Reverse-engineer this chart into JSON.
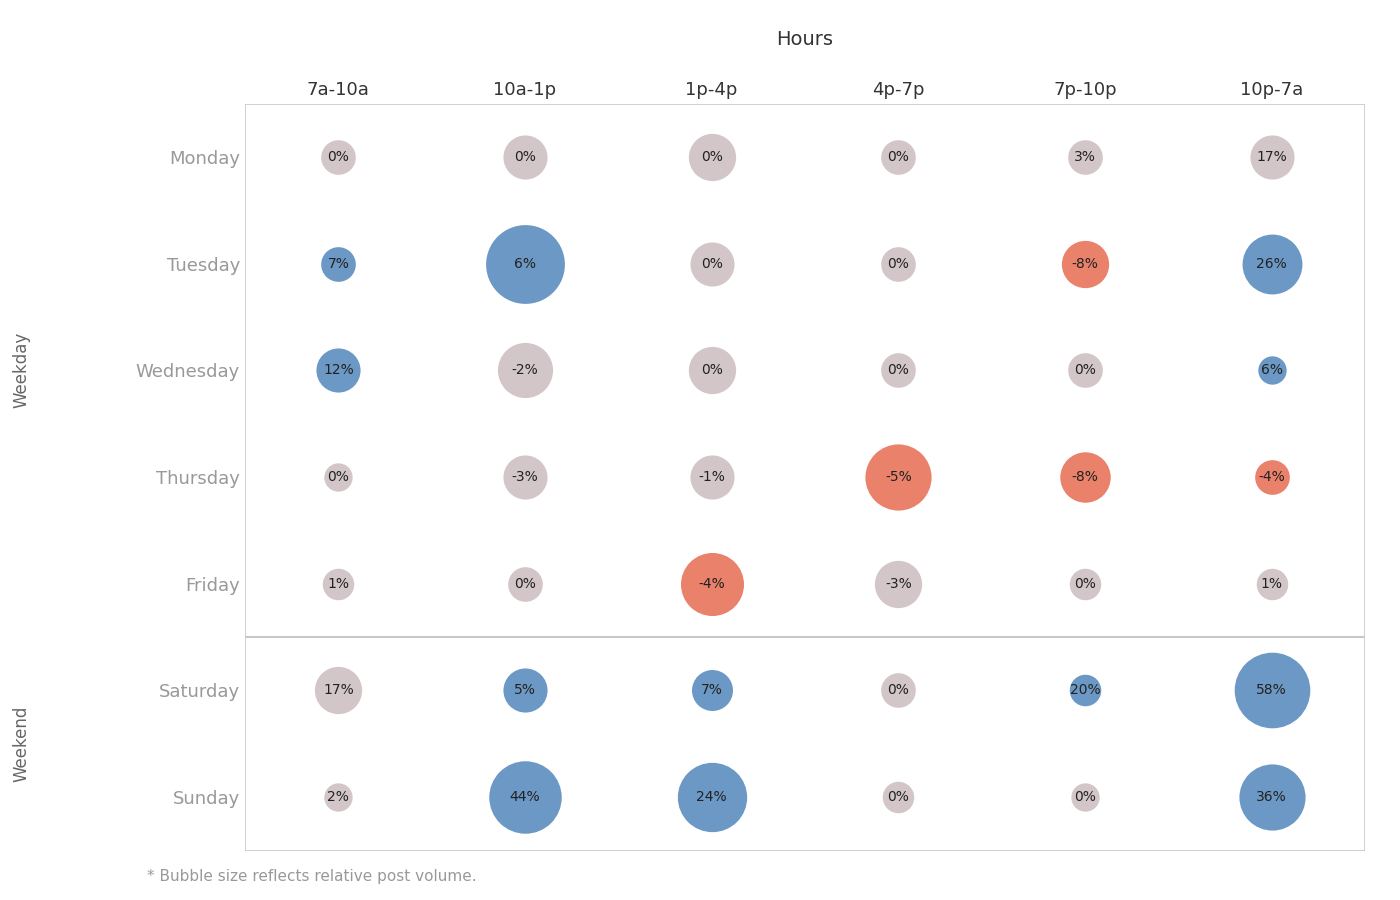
{
  "title": "Hours",
  "x_labels": [
    "7a-10a",
    "10a-1p",
    "1p-4p",
    "4p-7p",
    "7p-10p",
    "10p-7a"
  ],
  "y_labels": [
    "Monday",
    "Tuesday",
    "Wednesday",
    "Thursday",
    "Friday",
    "Saturday",
    "Sunday"
  ],
  "weekday_label": "Weekday",
  "weekend_label": "Weekend",
  "footnote": "* Bubble size reflects relative post volume.",
  "values": [
    [
      0,
      0,
      0,
      0,
      3,
      17
    ],
    [
      7,
      6,
      0,
      0,
      -8,
      26
    ],
    [
      12,
      -2,
      0,
      0,
      0,
      6
    ],
    [
      0,
      -3,
      -1,
      -5,
      -8,
      -4
    ],
    [
      1,
      0,
      -4,
      -3,
      0,
      1
    ],
    [
      17,
      5,
      7,
      0,
      20,
      58
    ],
    [
      2,
      44,
      24,
      0,
      0,
      36
    ]
  ],
  "colors": [
    [
      "neutral",
      "neutral",
      "neutral",
      "neutral",
      "neutral",
      "neutral"
    ],
    [
      "positive",
      "positive",
      "neutral",
      "neutral",
      "negative",
      "positive"
    ],
    [
      "positive",
      "neutral",
      "neutral",
      "neutral",
      "neutral",
      "positive"
    ],
    [
      "neutral",
      "neutral",
      "neutral",
      "negative",
      "negative",
      "negative"
    ],
    [
      "neutral",
      "neutral",
      "negative",
      "neutral",
      "neutral",
      "neutral"
    ],
    [
      "neutral",
      "positive",
      "positive",
      "neutral",
      "positive",
      "positive"
    ],
    [
      "neutral",
      "positive",
      "positive",
      "neutral",
      "neutral",
      "positive"
    ]
  ],
  "bubble_radii": [
    [
      22,
      28,
      30,
      22,
      22,
      28
    ],
    [
      22,
      50,
      28,
      22,
      30,
      38
    ],
    [
      28,
      35,
      30,
      22,
      22,
      18
    ],
    [
      18,
      28,
      28,
      42,
      32,
      22
    ],
    [
      20,
      22,
      40,
      30,
      20,
      20
    ],
    [
      30,
      28,
      26,
      22,
      20,
      48
    ],
    [
      18,
      46,
      44,
      20,
      18,
      42
    ]
  ],
  "color_neutral": "#cfc0c2",
  "color_positive": "#5b8dbe",
  "color_negative": "#e8735a",
  "bg_color": "#ffffff",
  "border_color": "#c8c8c8",
  "text_color": "#333333",
  "label_color": "#999999",
  "section_label_color": "#666666"
}
